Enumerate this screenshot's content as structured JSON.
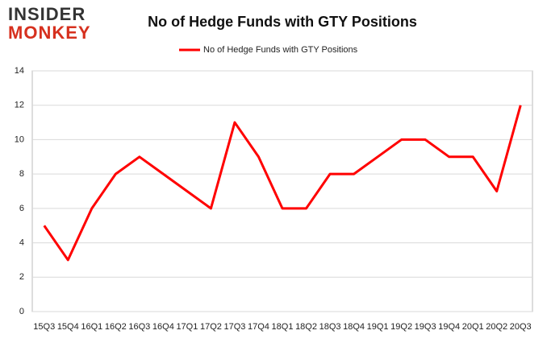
{
  "logo": {
    "line1": "INSIDER",
    "line2": "MONKEY"
  },
  "chart_data": {
    "type": "line",
    "title": "No of Hedge Funds with GTY Positions",
    "categories": [
      "15Q3",
      "15Q4",
      "16Q1",
      "16Q2",
      "16Q3",
      "16Q4",
      "17Q1",
      "17Q2",
      "17Q3",
      "17Q4",
      "18Q1",
      "18Q2",
      "18Q3",
      "18Q4",
      "19Q1",
      "19Q2",
      "19Q3",
      "19Q4",
      "20Q1",
      "20Q2",
      "20Q3"
    ],
    "series": [
      {
        "name": "No of Hedge Funds with GTY Positions",
        "color": "#ff0000",
        "values": [
          5,
          3,
          6,
          8,
          9,
          8,
          7,
          6,
          11,
          9,
          6,
          6,
          8,
          8,
          9,
          10,
          10,
          9,
          9,
          7,
          12
        ]
      }
    ],
    "ylim": [
      0,
      14
    ],
    "yticks": [
      0,
      2,
      4,
      6,
      8,
      10,
      12,
      14
    ],
    "grid": true,
    "legend": "top"
  }
}
